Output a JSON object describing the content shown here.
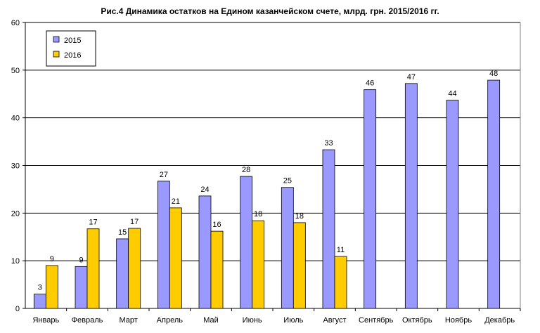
{
  "chart_data": {
    "type": "bar",
    "title": "Рис.4 Динамика остатков на Едином казанчейском счете, млрд. грн. 2015/2016 гг.",
    "xlabel": "",
    "ylabel": "",
    "ylim": [
      0,
      60
    ],
    "yticks": [
      "0",
      "10",
      "20",
      "30",
      "40",
      "50",
      "60"
    ],
    "grid": true,
    "legend": "top-left",
    "categories": [
      "Январь",
      "Февраль",
      "Март",
      "Апрель",
      "Май",
      "Июнь",
      "Июль",
      "Август",
      "Сентябрь",
      "Октябрь",
      "Ноябрь",
      "Декабрь"
    ],
    "series": [
      {
        "name": "2015",
        "color": "#9999FF",
        "values": [
          3.0,
          8.8,
          14.6,
          26.7,
          23.6,
          27.7,
          25.4,
          33.3,
          45.9,
          47.2,
          43.7,
          47.9
        ],
        "labels": [
          "3",
          "9",
          "15",
          "27",
          "24",
          "28",
          "25",
          "33",
          "46",
          "47",
          "44",
          "48"
        ]
      },
      {
        "name": "2016",
        "color": "#FFCC00",
        "values": [
          9.0,
          16.7,
          16.8,
          21.1,
          16.2,
          18.4,
          18.0,
          10.9,
          null,
          null,
          null,
          null
        ],
        "labels": [
          "9",
          "17",
          "17",
          "21",
          "16",
          "18",
          "18",
          "11",
          "",
          "",
          "",
          ""
        ]
      }
    ]
  }
}
